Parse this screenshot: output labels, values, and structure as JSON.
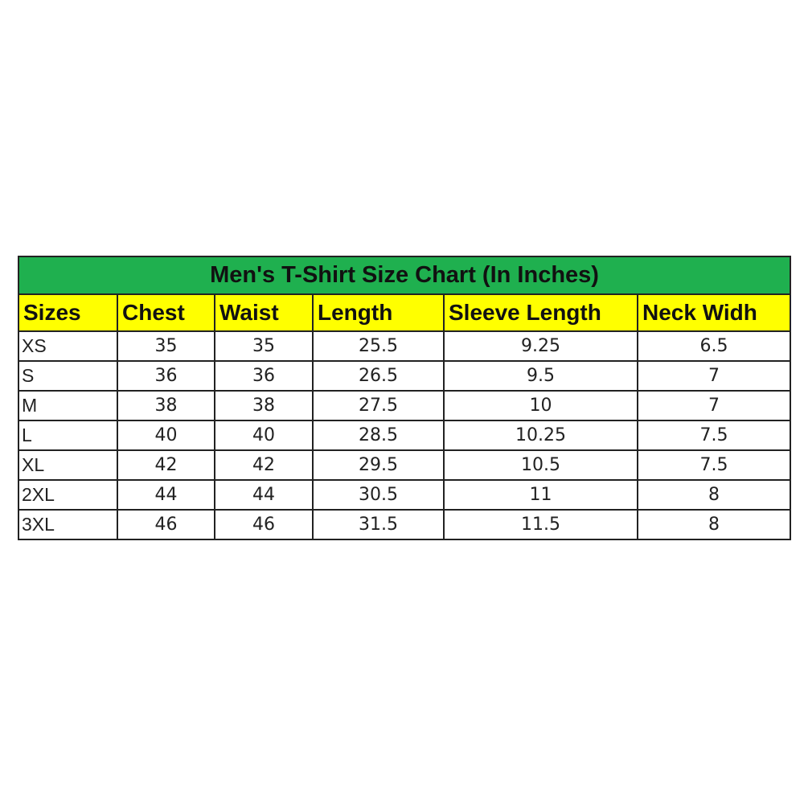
{
  "title": "Men's T-Shirt Size Chart (In Inches)",
  "colors": {
    "title_bg": "#1fb04f",
    "header_bg": "#ffff00"
  },
  "headers": [
    "Sizes",
    "Chest",
    "Waist",
    "Length",
    "Sleeve Length",
    "Neck Widh"
  ],
  "rows": [
    [
      "XS",
      "35",
      "35",
      "25.5",
      "9.25",
      "6.5"
    ],
    [
      "S",
      "36",
      "36",
      "26.5",
      "9.5",
      "7"
    ],
    [
      "M",
      "38",
      "38",
      "27.5",
      "10",
      "7"
    ],
    [
      "L",
      "40",
      "40",
      "28.5",
      "10.25",
      "7.5"
    ],
    [
      "XL",
      "42",
      "42",
      "29.5",
      "10.5",
      "7.5"
    ],
    [
      "2XL",
      "44",
      "44",
      "30.5",
      "11",
      "8"
    ],
    [
      "3XL",
      "46",
      "46",
      "31.5",
      "11.5",
      "8"
    ]
  ]
}
